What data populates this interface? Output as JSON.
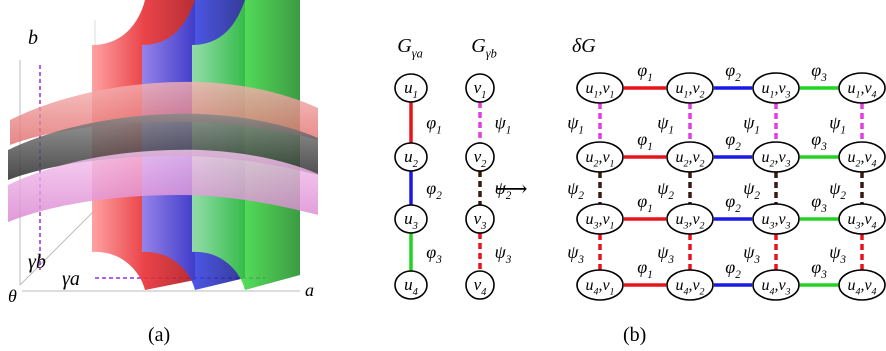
{
  "panel_a": {
    "caption": "(a)",
    "axis_b": "b",
    "axis_theta": "θ",
    "axis_a": "a",
    "gamma_b": "γb",
    "gamma_a": "γa",
    "surface_colors": {
      "red": "#e8343a",
      "blue": "#3340e0",
      "green": "#34d23a",
      "pink": "#e98fe0",
      "gray": "#444444",
      "salmon": "#f08a8a"
    }
  },
  "panel_b": {
    "caption": "(b)",
    "arrow": "⟶",
    "graph_a": {
      "title_base": "G",
      "title_sub": "γa",
      "nodes": [
        {
          "base": "u",
          "sub": "1"
        },
        {
          "base": "u",
          "sub": "2"
        },
        {
          "base": "u",
          "sub": "3"
        },
        {
          "base": "u",
          "sub": "4"
        }
      ],
      "edges": [
        {
          "label": "φ",
          "sub": "1",
          "color": "#e8141c"
        },
        {
          "label": "φ",
          "sub": "2",
          "color": "#1a1ae6"
        },
        {
          "label": "φ",
          "sub": "3",
          "color": "#22d422"
        }
      ]
    },
    "graph_b": {
      "title_base": "G",
      "title_sub": "γb",
      "nodes": [
        {
          "base": "v",
          "sub": "1"
        },
        {
          "base": "v",
          "sub": "2"
        },
        {
          "base": "v",
          "sub": "3"
        },
        {
          "base": "v",
          "sub": "4"
        }
      ],
      "edges": [
        {
          "label": "ψ",
          "sub": "1",
          "color": "#e23ee0"
        },
        {
          "label": "ψ",
          "sub": "2",
          "color": "#3a1a10"
        },
        {
          "label": "ψ",
          "sub": "3",
          "color": "#e8141c"
        }
      ]
    },
    "product": {
      "title": "δG",
      "rows": [
        [
          [
            "u",
            "1",
            "v",
            "1"
          ],
          [
            "u",
            "1",
            "v",
            "2"
          ],
          [
            "u",
            "1",
            "v",
            "3"
          ],
          [
            "u",
            "1",
            "v",
            "4"
          ]
        ],
        [
          [
            "u",
            "2",
            "v",
            "1"
          ],
          [
            "u",
            "2",
            "v",
            "2"
          ],
          [
            "u",
            "2",
            "v",
            "3"
          ],
          [
            "u",
            "2",
            "v",
            "4"
          ]
        ],
        [
          [
            "u",
            "3",
            "v",
            "1"
          ],
          [
            "u",
            "3",
            "v",
            "2"
          ],
          [
            "u",
            "3",
            "v",
            "3"
          ],
          [
            "u",
            "3",
            "v",
            "4"
          ]
        ],
        [
          [
            "u",
            "4",
            "v",
            "1"
          ],
          [
            "u",
            "4",
            "v",
            "2"
          ],
          [
            "u",
            "4",
            "v",
            "3"
          ],
          [
            "u",
            "4",
            "v",
            "4"
          ]
        ]
      ],
      "h_edges": [
        {
          "label": "φ",
          "sub": "1",
          "color": "#e8141c"
        },
        {
          "label": "φ",
          "sub": "2",
          "color": "#1a1ae6"
        },
        {
          "label": "φ",
          "sub": "3",
          "color": "#22d422"
        }
      ],
      "v_edges": [
        {
          "label": "ψ",
          "sub": "1",
          "color": "#e23ee0"
        },
        {
          "label": "ψ",
          "sub": "2",
          "color": "#3a1a10"
        },
        {
          "label": "ψ",
          "sub": "3",
          "color": "#e8141c"
        }
      ]
    }
  }
}
